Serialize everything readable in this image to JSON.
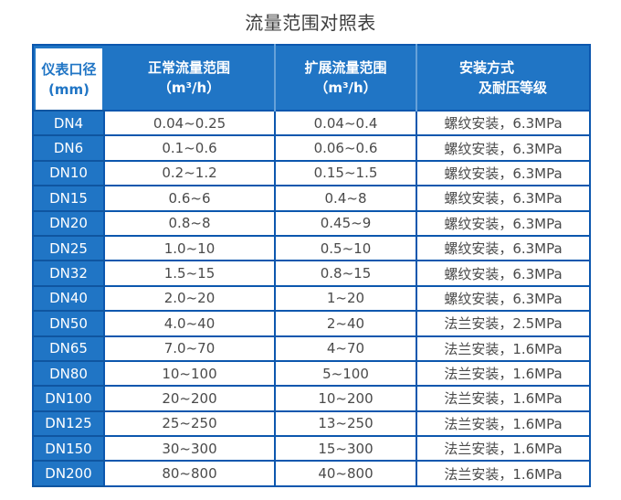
{
  "title": "流量范围对照表",
  "colors": {
    "header_blue": "#2075c5",
    "grid_blue": "#0c57ae",
    "label_separator_blue": "#0f55a0",
    "header_divider_light": "#66a1d9",
    "cell_text": "#4a4a4a",
    "title_text": "#3e3e3e",
    "header_text_on_blue": "#ffffff",
    "header_first_cell_text": "#2075c5"
  },
  "table": {
    "headers": [
      {
        "lines": [
          "仪表口径",
          "(mm)"
        ]
      },
      {
        "lines": [
          "正常流量范围",
          "（m³/h）"
        ]
      },
      {
        "lines": [
          "扩展流量范围",
          "（m³/h）"
        ]
      },
      {
        "lines": [
          "安装方式",
          "及耐压等级"
        ]
      }
    ]
  },
  "chart_data": {
    "type": "table",
    "title": "流量范围对照表",
    "columns": [
      "仪表口径(mm)",
      "正常流量范围（m³/h）",
      "扩展流量范围（m³/h）",
      "安装方式及耐压等级"
    ],
    "rows": [
      [
        "DN4",
        "0.04~0.25",
        "0.04~0.4",
        "螺纹安装，6.3MPa"
      ],
      [
        "DN6",
        "0.1~0.6",
        "0.06~0.6",
        "螺纹安装，6.3MPa"
      ],
      [
        "DN10",
        "0.2~1.2",
        "0.15~1.5",
        "螺纹安装，6.3MPa"
      ],
      [
        "DN15",
        "0.6~6",
        "0.4~8",
        "螺纹安装，6.3MPa"
      ],
      [
        "DN20",
        "0.8~8",
        "0.45~9",
        "螺纹安装，6.3MPa"
      ],
      [
        "DN25",
        "1.0~10",
        "0.5~10",
        "螺纹安装，6.3MPa"
      ],
      [
        "DN32",
        "1.5~15",
        "0.8~15",
        "螺纹安装，6.3MPa"
      ],
      [
        "DN40",
        "2.0~20",
        "1~20",
        "螺纹安装，6.3MPa"
      ],
      [
        "DN50",
        "4.0~40",
        "2~40",
        "法兰安装，2.5MPa"
      ],
      [
        "DN65",
        "7.0~70",
        "4~70",
        "法兰安装，1.6MPa"
      ],
      [
        "DN80",
        "10~100",
        "5~100",
        "法兰安装，1.6MPa"
      ],
      [
        "DN100",
        "20~200",
        "10~200",
        "法兰安装，1.6MPa"
      ],
      [
        "DN125",
        "25~250",
        "13~250",
        "法兰安装，1.6MPa"
      ],
      [
        "DN150",
        "30~300",
        "15~300",
        "法兰安装，1.6MPa"
      ],
      [
        "DN200",
        "80~800",
        "40~800",
        "法兰安装，1.6MPa"
      ]
    ]
  }
}
